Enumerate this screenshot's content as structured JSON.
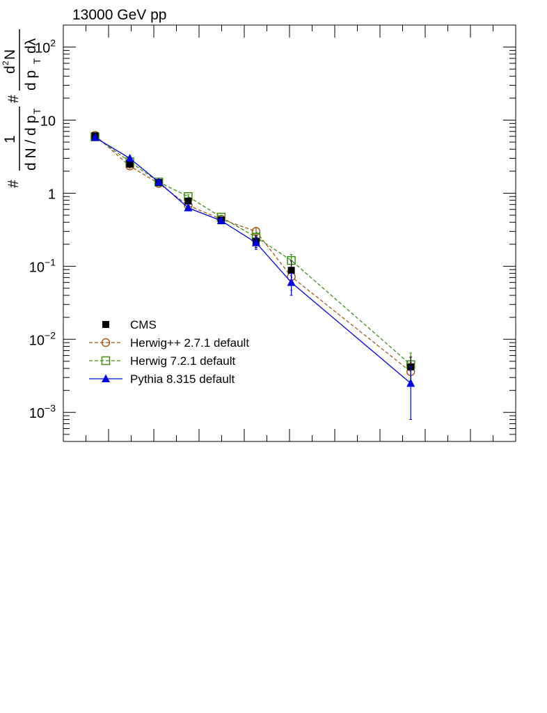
{
  "chart_data": {
    "type": "scatter",
    "title": "13000 GeV pp",
    "ylabel": {
      "hash": "#",
      "one": "1",
      "dN": "d N / d p",
      "T": "T",
      "hash2": "#",
      "d2N": "d",
      "two": "2",
      "N": "N",
      "dpT": "d p",
      "dlambda": "dλ"
    },
    "yscale": "log",
    "ylim": [
      0.0004,
      200
    ],
    "xlim": [
      0,
      1
    ],
    "y_ticks": [
      {
        "value": 0.001,
        "base": "10",
        "exp": "−3"
      },
      {
        "value": 0.01,
        "base": "10",
        "exp": "−2"
      },
      {
        "value": 0.1,
        "base": "10",
        "exp": "−1"
      },
      {
        "value": 1,
        "base": "1",
        "exp": ""
      },
      {
        "value": 10,
        "base": "10",
        "exp": ""
      },
      {
        "value": 100,
        "base": "10",
        "exp": "2"
      }
    ],
    "x_major_ticks": [
      0.05,
      0.1,
      0.15,
      0.2,
      0.25,
      0.3,
      0.35,
      0.4,
      0.45,
      0.5,
      0.55,
      0.6,
      0.65,
      0.7,
      0.75,
      0.8,
      0.85,
      0.9,
      0.95
    ],
    "grid": false,
    "legend_position": "bottom-left",
    "series": [
      {
        "name": "CMS",
        "color": "#000000",
        "marker": "square-filled",
        "line": "none",
        "x": [
          0.07,
          0.147,
          0.211,
          0.276,
          0.349,
          0.426,
          0.504,
          0.768
        ],
        "y": [
          6.1,
          2.5,
          1.4,
          0.78,
          0.43,
          0.22,
          0.088,
          0.0042
        ],
        "err": [
          0.4,
          0.2,
          0.1,
          0.06,
          0.04,
          0.04,
          0.03,
          0.0015
        ]
      },
      {
        "name": "Herwig++ 2.7.1 default",
        "color": "#a35a1e",
        "marker": "circle-open",
        "line": "dashed",
        "x": [
          0.07,
          0.147,
          0.211,
          0.276,
          0.349,
          0.426,
          0.504,
          0.768
        ],
        "y": [
          6.2,
          2.35,
          1.36,
          0.68,
          0.44,
          0.3,
          0.072,
          0.0036
        ],
        "err": [
          0.2,
          0.15,
          0.08,
          0.05,
          0.03,
          0.04,
          0.025,
          0.0012
        ]
      },
      {
        "name": "Herwig 7.2.1 default",
        "color": "#3c8c14",
        "marker": "square-open",
        "line": "dashed",
        "x": [
          0.07,
          0.147,
          0.211,
          0.276,
          0.349,
          0.426,
          0.504,
          0.768
        ],
        "y": [
          5.9,
          2.7,
          1.42,
          0.9,
          0.47,
          0.25,
          0.12,
          0.0045
        ],
        "err": [
          0.2,
          0.15,
          0.08,
          0.05,
          0.03,
          0.03,
          0.025,
          0.002
        ]
      },
      {
        "name": "Pythia 8.315 default",
        "color": "#0000e6",
        "marker": "triangle-filled",
        "line": "solid",
        "x": [
          0.07,
          0.147,
          0.211,
          0.276,
          0.349,
          0.426,
          0.504,
          0.768
        ],
        "y": [
          5.8,
          3.0,
          1.42,
          0.63,
          0.42,
          0.21,
          0.06,
          0.0025
        ],
        "err": [
          0.2,
          0.15,
          0.08,
          0.05,
          0.04,
          0.04,
          0.02,
          0.0017
        ]
      }
    ]
  }
}
